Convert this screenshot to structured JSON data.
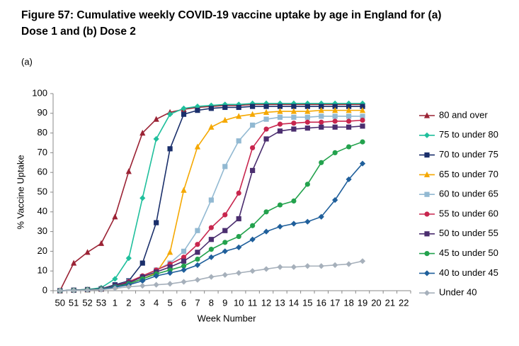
{
  "chart_data": {
    "type": "line",
    "title": [
      "Figure 57: Cumulative weekly COVID-19 vaccine uptake by age in England for (a)",
      "Dose 1 and (b) Dose 2"
    ],
    "panel_label": "(a)",
    "y_label": "% Vaccine Uptake",
    "x_label": "Week Number",
    "categories": [
      "50",
      "51",
      "52",
      "53",
      "1",
      "2",
      "3",
      "4",
      "5",
      "6",
      "7",
      "8",
      "9",
      "10",
      "11",
      "12",
      "13",
      "14",
      "15",
      "16",
      "17",
      "18",
      "19",
      "20",
      "21",
      "22"
    ],
    "ylim": [
      0,
      100
    ],
    "yticks": [
      0,
      10,
      20,
      30,
      40,
      50,
      60,
      70,
      80,
      90,
      100
    ],
    "legend": "right",
    "series": [
      {
        "name": "80 and over",
        "color": "#9b2335",
        "marker": "triangle",
        "values": [
          0,
          14,
          19.5,
          24,
          37.5,
          60.5,
          80,
          87,
          90.5,
          92,
          93,
          93.5,
          94,
          94,
          94.5,
          94.5,
          94.5,
          94.5,
          94.5,
          94.5,
          94.5,
          94.5,
          94.5,
          null,
          null,
          null
        ]
      },
      {
        "name": "75 to under 80",
        "color": "#1fbf9c",
        "marker": "diamond",
        "values": [
          0,
          0.3,
          0.6,
          1.5,
          6,
          16.5,
          47,
          77,
          89.5,
          92.5,
          93.5,
          94,
          94.5,
          94.5,
          95,
          95,
          95,
          95,
          95,
          95,
          95,
          95,
          95,
          null,
          null,
          null
        ]
      },
      {
        "name": "70 to under 75",
        "color": "#1a2f6b",
        "marker": "square",
        "values": [
          0,
          0.3,
          0.6,
          1,
          3,
          5,
          14,
          34.5,
          72,
          89.5,
          91.5,
          92.5,
          93,
          93,
          93.5,
          93.5,
          93.5,
          93.5,
          93.5,
          93.5,
          93.5,
          93.5,
          93.5,
          null,
          null,
          null
        ]
      },
      {
        "name": "65 to under 70",
        "color": "#f5a800",
        "marker": "triangle",
        "values": [
          0,
          0.2,
          0.4,
          0.8,
          2,
          3.5,
          6,
          9,
          19.5,
          51,
          73,
          83,
          86.5,
          88.5,
          89.5,
          90.5,
          91,
          91,
          91,
          91.5,
          91.5,
          91.5,
          91.5,
          null,
          null,
          null
        ]
      },
      {
        "name": "60 to under 65",
        "color": "#92b9d2",
        "marker": "square",
        "values": [
          0,
          0.2,
          0.5,
          0.9,
          2.5,
          4.5,
          7,
          10.5,
          14,
          20,
          30.5,
          46,
          63,
          76,
          84,
          87,
          88,
          88,
          88,
          88.5,
          88.5,
          88.5,
          88.5,
          null,
          null,
          null
        ]
      },
      {
        "name": "55 to under 60",
        "color": "#c8264e",
        "marker": "circle",
        "values": [
          0,
          0.2,
          0.5,
          0.9,
          2.5,
          4.5,
          7.5,
          10.5,
          13.5,
          17,
          23.5,
          32,
          38.5,
          49.5,
          72.5,
          82,
          84.5,
          85,
          85.5,
          85.5,
          86,
          86,
          86.5,
          null,
          null,
          null
        ]
      },
      {
        "name": "50 to under 55",
        "color": "#4b2e6f",
        "marker": "square",
        "values": [
          0,
          0.2,
          0.5,
          0.8,
          2.5,
          4,
          7,
          9.5,
          12,
          15,
          19.5,
          26,
          30.5,
          36.5,
          61,
          77,
          81,
          82,
          82.5,
          83,
          83,
          83,
          83.5,
          null,
          null,
          null
        ]
      },
      {
        "name": "45 to under 50",
        "color": "#23a24d",
        "marker": "circle",
        "values": [
          0,
          0.2,
          0.5,
          0.8,
          2,
          3.5,
          6,
          8.5,
          10.5,
          12.5,
          16,
          21,
          24.5,
          27.5,
          33,
          40,
          43.5,
          45.5,
          54,
          65,
          70,
          73,
          75.5,
          null,
          null,
          null
        ]
      },
      {
        "name": "40 to under 45",
        "color": "#1f5f9b",
        "marker": "diamond",
        "values": [
          0,
          0.2,
          0.4,
          0.7,
          1.8,
          3,
          5,
          7.5,
          9,
          10.5,
          13,
          17,
          20,
          22,
          26,
          30,
          32.5,
          34,
          35,
          37.5,
          46,
          56.5,
          64.5,
          null,
          null,
          null
        ]
      },
      {
        "name": "Under 40",
        "color": "#a6b0bb",
        "marker": "diamond",
        "values": [
          0,
          0.1,
          0.3,
          0.5,
          1.2,
          2,
          2.5,
          3,
          3.5,
          4.5,
          5.5,
          7,
          8,
          9,
          10,
          11,
          12,
          12,
          12.5,
          12.5,
          13,
          13.5,
          15,
          null,
          null,
          null
        ]
      }
    ]
  }
}
